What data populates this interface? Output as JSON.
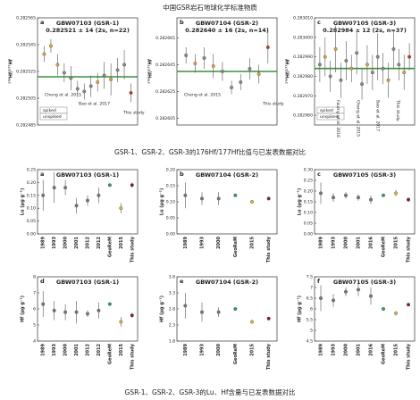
{
  "figure": {
    "title": "中国GSR岩石地球化学标准物质",
    "caption_top": "GSR-1、GSR-2、GSR-3的176Hf/177Hf比值与已发表数据对比",
    "caption_bottom": "GSR-1、GSR-2、GSR-3的Lu、Hf含量与已发表数据对比"
  },
  "chart_data": [
    {
      "type": "errorbar",
      "panel": "a",
      "title": "GBW07103 (GSR-1)",
      "subtitle": "0.282521 ± 14 (2s, n=22)",
      "ylabel": "¹⁷⁶Hf/¹⁷⁷Hf",
      "ylim": [
        0.282485,
        0.282565
      ],
      "yticks": [
        0.282485,
        0.282505,
        0.282525,
        0.282545,
        0.282565
      ],
      "xlim": [
        0,
        15
      ],
      "x": [
        1,
        2,
        3,
        4,
        5,
        6,
        7,
        8,
        9,
        10,
        11,
        12,
        13,
        14
      ],
      "values": [
        0.282538,
        0.282544,
        0.28253,
        0.282524,
        0.28252,
        0.282512,
        0.28251,
        0.282514,
        0.282517,
        0.282522,
        0.282519,
        0.282526,
        0.28253,
        0.282509
      ],
      "errors": [
        6e-06,
        5e-06,
        8e-06,
        7e-06,
        9e-06,
        6e-06,
        6e-06,
        8e-06,
        7e-06,
        1e-05,
        1.2e-05,
        9e-06,
        1.1e-05,
        7e-06
      ],
      "colors": [
        "#d9a441",
        "#d9a441",
        "#d9a441",
        "#888888",
        "#888888",
        "#888888",
        "#888888",
        "#888888",
        "#d9a441",
        "#888888",
        "#d9a441",
        "#888888",
        "#888888",
        "#c0392b"
      ],
      "mean": 0.282521,
      "mean_color": "#3a8f3a",
      "legend": [
        "spiked",
        "unspiked"
      ],
      "annotations": [
        "Cheng et al. 2015",
        "Bao et al. 2017",
        "This study"
      ]
    },
    {
      "type": "errorbar",
      "panel": "b",
      "title": "GBW07104 (GSR-2)",
      "subtitle": "0.282640 ± 16 (2s, n=14)",
      "ylabel": "¹⁷⁶Hf/¹⁷⁷Hf",
      "ylim": [
        0.2826,
        0.28268
      ],
      "yticks": [
        0.282605,
        0.282625,
        0.282645,
        0.282665
      ],
      "xlim": [
        0,
        11
      ],
      "x": [
        1,
        2,
        3,
        4,
        5,
        6,
        7,
        8,
        9,
        10
      ],
      "values": [
        0.282652,
        0.282646,
        0.28265,
        0.282644,
        0.28264,
        0.282628,
        0.282632,
        0.282642,
        0.282638,
        0.282658
      ],
      "errors": [
        6e-06,
        7e-06,
        8e-06,
        9e-06,
        7e-06,
        5e-06,
        6e-06,
        8e-06,
        7e-06,
        1.2e-05
      ],
      "colors": [
        "#888888",
        "#d9a441",
        "#888888",
        "#d9a441",
        "#888888",
        "#888888",
        "#888888",
        "#888888",
        "#d9a441",
        "#c0392b"
      ],
      "mean": 0.28264,
      "mean_color": "#3a8f3a",
      "annotations": [
        "Cheng et al. 2015",
        "This study"
      ]
    },
    {
      "type": "errorbar",
      "panel": "c",
      "title": "GBW07105 (GSR-3)",
      "subtitle": "0.282984 ± 12 (2s, n=37)",
      "ylabel": "¹⁷⁶Hf/¹⁷⁷Hf",
      "ylim": [
        0.282955,
        0.28301
      ],
      "yticks": [
        {
          "value": 0.28296,
          "label": "0.282960"
        },
        {
          "value": 0.28297,
          "label": "0.282970"
        },
        {
          "value": 0.28298,
          "label": "0.282980"
        },
        {
          "value": 0.28299,
          "label": "0.282990"
        },
        {
          "value": 0.283,
          "label": "0.283000"
        },
        {
          "value": 0.28301,
          "label": "0.283010"
        }
      ],
      "xlim": [
        0,
        19
      ],
      "x": [
        1,
        2,
        3,
        4,
        5,
        6,
        7,
        8,
        9,
        10,
        11,
        12,
        13,
        14,
        15,
        16,
        17,
        18
      ],
      "values": [
        0.282986,
        0.28299,
        0.28298,
        0.282994,
        0.282978,
        0.282988,
        0.282984,
        0.282992,
        0.282976,
        0.282986,
        0.282982,
        0.28299,
        0.282984,
        0.282978,
        0.282994,
        0.282986,
        0.282982,
        0.28299
      ],
      "errors": [
        9e-06,
        1e-05,
        8e-06,
        1.2e-05,
        9e-06,
        1e-05,
        7e-06,
        1.1e-05,
        8e-06,
        1e-05,
        9e-06,
        1.2e-05,
        8e-06,
        9e-06,
        1e-05,
        8e-06,
        9e-06,
        7e-06
      ],
      "colors": [
        "#888888",
        "#d9a441",
        "#888888",
        "#d9a441",
        "#888888",
        "#888888",
        "#d9a441",
        "#888888",
        "#888888",
        "#d9a441",
        "#888888",
        "#888888",
        "#888888",
        "#d9a441",
        "#888888",
        "#888888",
        "#d9a441",
        "#c0392b"
      ],
      "mean": 0.282984,
      "mean_color": "#3a8f3a",
      "legend": [
        "spiked",
        "unspiked"
      ],
      "annotations": [
        "Fourny et al. 2016",
        "Cheng et al. 2015",
        "Bao et al. 2017",
        "This study"
      ]
    },
    {
      "type": "category_errorbar",
      "panel": "a",
      "title": "GBW07103 (GSR-1)",
      "ylabel": "Lu (μg g⁻¹)",
      "ylim": [
        0,
        0.25
      ],
      "yticks": [
        {
          "value": 0,
          "label": "0.00"
        },
        0.05,
        {
          "value": 0.1,
          "label": "0.10"
        },
        0.15,
        {
          "value": 0.2,
          "label": "0.20"
        },
        0.25
      ],
      "categories": [
        "1989",
        "1993",
        "2000",
        "2001",
        "2012",
        "2012",
        "GeoReM",
        "2015",
        "This study"
      ],
      "values": [
        0.15,
        0.18,
        0.18,
        0.11,
        0.13,
        0.15,
        0.19,
        0.1,
        0.19
      ],
      "errors": [
        0.06,
        0.06,
        0.03,
        0.03,
        0.02,
        0.03,
        0,
        0.02,
        0.01
      ],
      "colors": [
        "#777777",
        "#777777",
        "#777777",
        "#777777",
        "#777777",
        "#777777",
        "#2e9e6a",
        "#d9b441",
        "#8b1a2b"
      ]
    },
    {
      "type": "category_errorbar",
      "panel": "b",
      "title": "GBW07104 (GSR-2)",
      "ylabel": "Lu (μg g⁻¹)",
      "ylim": [
        0,
        0.2
      ],
      "yticks": [
        {
          "value": 0,
          "label": "0.00"
        },
        0.05,
        {
          "value": 0.1,
          "label": "0.10"
        },
        0.15,
        {
          "value": 0.2,
          "label": "0.20"
        }
      ],
      "categories": [
        "1989",
        "1993",
        "2000",
        "GeoReM",
        "2015",
        "This study"
      ],
      "values": [
        0.12,
        0.11,
        0.11,
        0.12,
        0.1,
        0.11
      ],
      "errors": [
        0.04,
        0.02,
        0.02,
        0,
        0.005,
        0.005
      ],
      "colors": [
        "#777777",
        "#777777",
        "#777777",
        "#2e9e6a",
        "#d9b441",
        "#8b1a2b"
      ]
    },
    {
      "type": "category_errorbar",
      "panel": "c",
      "title": "GBW07105 (GSR-3)",
      "ylabel": "Lu (μg g⁻¹)",
      "ylim": [
        0,
        0.3
      ],
      "yticks": [
        {
          "value": 0,
          "label": "0.00"
        },
        0.05,
        {
          "value": 0.1,
          "label": "0.10"
        },
        0.15,
        {
          "value": 0.2,
          "label": "0.20"
        },
        0.25,
        {
          "value": 0.3,
          "label": "0.30"
        }
      ],
      "categories": [
        "1989",
        "1993",
        "2000",
        "2001",
        "2016",
        "GeoReM",
        "2015",
        "This study"
      ],
      "values": [
        0.19,
        0.17,
        0.18,
        0.17,
        0.16,
        0.18,
        0.19,
        0.16
      ],
      "errors": [
        0.05,
        0.02,
        0.015,
        0.015,
        0.02,
        0,
        0.015,
        0.01
      ],
      "colors": [
        "#777777",
        "#777777",
        "#777777",
        "#777777",
        "#777777",
        "#2e9e6a",
        "#d9b441",
        "#8b1a2b"
      ]
    },
    {
      "type": "category_errorbar",
      "panel": "d",
      "title": "GBW07103 (GSR-1)",
      "ylabel": "Hf (μg g⁻¹)",
      "ylim": [
        4,
        8
      ],
      "yticks": [
        4,
        5,
        6,
        7,
        8
      ],
      "categories": [
        "1989",
        "1993",
        "2000",
        "2001",
        "2012",
        "2012",
        "GeoReM",
        "2015",
        "This study"
      ],
      "values": [
        6.3,
        5.9,
        5.8,
        5.8,
        5.7,
        5.9,
        6.3,
        5.2,
        5.6
      ],
      "errors": [
        0.8,
        0.6,
        0.5,
        0.7,
        0.2,
        0.5,
        0,
        0.3,
        0.15
      ],
      "colors": [
        "#777777",
        "#777777",
        "#777777",
        "#777777",
        "#777777",
        "#777777",
        "#2e9e6a",
        "#d9b441",
        "#8b1a2b"
      ]
    },
    {
      "type": "category_errorbar",
      "panel": "e",
      "title": "GBW07104 (GSR-2)",
      "ylabel": "Hf (μg g⁻¹)",
      "ylim": [
        1.8,
        3.8
      ],
      "yticks": [
        1.8,
        2.3,
        2.8,
        3.3,
        3.8
      ],
      "categories": [
        "1989",
        "1993",
        "2000",
        "GeoReM",
        "2015",
        "This study"
      ],
      "values": [
        2.9,
        2.7,
        2.7,
        2.8,
        2.4,
        2.5
      ],
      "errors": [
        0.4,
        0.3,
        0.15,
        0,
        0.05,
        0.05
      ],
      "colors": [
        "#777777",
        "#777777",
        "#777777",
        "#2e9e6a",
        "#d9b441",
        "#8b1a2b"
      ]
    },
    {
      "type": "category_errorbar",
      "panel": "f",
      "title": "GBW07105 (GSR-3)",
      "ylabel": "Hf (μg g⁻¹)",
      "ylim": [
        4.5,
        7.5
      ],
      "yticks": [
        4.5,
        5,
        5.5,
        6,
        6.5,
        7,
        7.5
      ],
      "categories": [
        "1989",
        "1993",
        "2000",
        "2001",
        "2016",
        "GeoReM",
        "2015",
        "This study"
      ],
      "values": [
        6.5,
        6.4,
        6.8,
        6.9,
        6.6,
        6,
        5.8,
        6.2
      ],
      "errors": [
        0.6,
        0.3,
        0.2,
        0.3,
        0.4,
        0,
        0.1,
        0.05
      ],
      "colors": [
        "#777777",
        "#777777",
        "#777777",
        "#777777",
        "#777777",
        "#2e9e6a",
        "#d9b441",
        "#8b1a2b"
      ]
    }
  ]
}
